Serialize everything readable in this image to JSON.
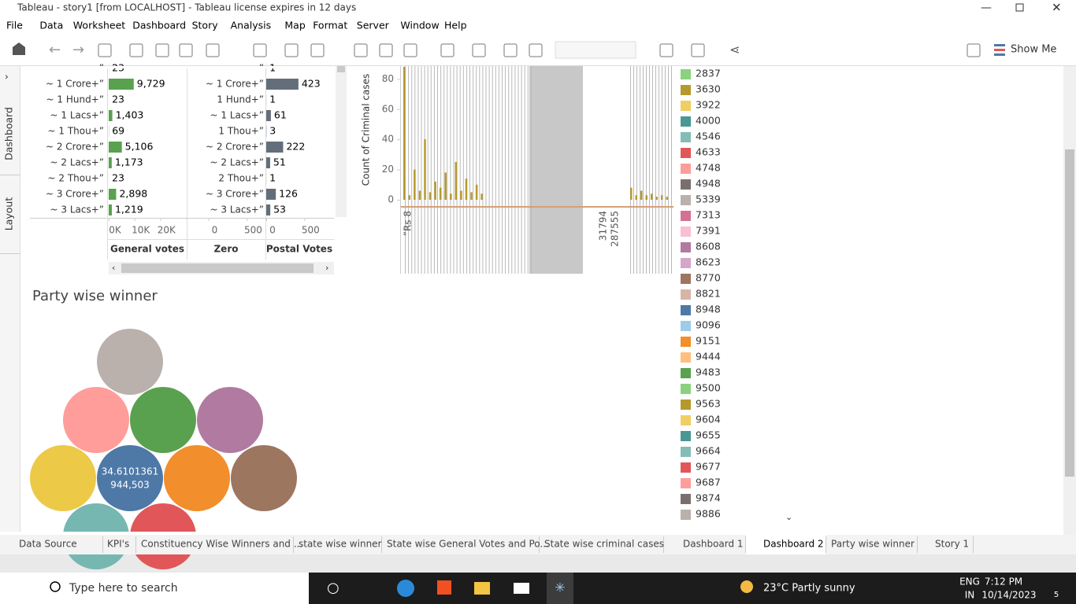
{
  "window": {
    "title": "Tableau - story1 [from LOCALHOST] - Tableau license expires in 12 days"
  },
  "menu": [
    "File",
    "Data",
    "Worksheet",
    "Dashboard",
    "Story",
    "Analysis",
    "Map",
    "Format",
    "Server",
    "Window",
    "Help"
  ],
  "toolbar": {
    "show_me": "Show Me"
  },
  "side_tabs": [
    "Dashboard",
    "Layout"
  ],
  "votes_table": {
    "row_labels": [
      "”",
      "~ 1 Crore+”",
      "~ 1 Hund+”",
      "~ 1 Lacs+”",
      "~ 1 Thou+”",
      "~ 2 Crore+”",
      "~ 2 Lacs+”",
      "~ 2 Thou+”",
      "~ 3 Crore+”",
      "~ 3 Lacs+”"
    ],
    "zero_row_labels": [
      "”",
      "~ 1 Crore+”",
      "1 Hund+”",
      "~ 1 Lacs+”",
      "1 Thou+”",
      "~ 2 Crore+”",
      "~ 2 Lacs+”",
      "2 Thou+”",
      "~ 3 Crore+”",
      "~ 3 Lacs+”"
    ],
    "general_votes": {
      "title": "General votes",
      "color": "#59a14f",
      "values": [
        23,
        9729,
        23,
        1403,
        69,
        5106,
        1173,
        23,
        2898,
        1219
      ],
      "value_labels": [
        "23",
        "9,729",
        "23",
        "1,403",
        "69",
        "5,106",
        "1,173",
        "23",
        "2,898",
        "1,219"
      ],
      "xlim": [
        0,
        30000
      ],
      "xticks": [
        {
          "value": 0,
          "label": "0K"
        },
        {
          "value": 10000,
          "label": "10K"
        },
        {
          "value": 20000,
          "label": "20K"
        }
      ]
    },
    "zero": {
      "title": "Zero",
      "xlim": [
        -250,
        740
      ],
      "xticks": [
        0,
        500
      ]
    },
    "postal_votes": {
      "title": "Postal Votes",
      "color": "#636e7a",
      "values": [
        1,
        423,
        1,
        61,
        3,
        222,
        51,
        1,
        126,
        53
      ],
      "xlim": [
        0,
        880
      ],
      "xticks": [
        0,
        500
      ]
    }
  },
  "criminal_chart": {
    "type": "bar",
    "y_label": "Count of Criminal cases",
    "color": "#b6992d",
    "ylim": [
      0,
      88
    ],
    "yticks": [
      0,
      20,
      40,
      60,
      80
    ],
    "values": [
      88,
      3,
      20,
      6,
      40,
      5,
      12,
      8,
      18,
      4,
      25,
      6,
      14,
      5,
      10,
      4,
      8,
      3,
      6,
      3,
      4,
      2,
      3,
      2
    ],
    "x_labels": [
      "”Rs 8",
      "31794",
      "287555"
    ]
  },
  "legend": {
    "items": [
      {
        "label": "2837",
        "color": "#8cd17d"
      },
      {
        "label": "3630",
        "color": "#b6992d"
      },
      {
        "label": "3922",
        "color": "#f1ce63"
      },
      {
        "label": "4000",
        "color": "#499894"
      },
      {
        "label": "4546",
        "color": "#86bcb6"
      },
      {
        "label": "4633",
        "color": "#e15759"
      },
      {
        "label": "4748",
        "color": "#ff9d9a"
      },
      {
        "label": "4948",
        "color": "#79706e"
      },
      {
        "label": "5339",
        "color": "#bab0ac"
      },
      {
        "label": "7313",
        "color": "#d37295"
      },
      {
        "label": "7391",
        "color": "#fabfd2"
      },
      {
        "label": "8608",
        "color": "#b07aa1"
      },
      {
        "label": "8623",
        "color": "#d4a6c8"
      },
      {
        "label": "8770",
        "color": "#9d7660"
      },
      {
        "label": "8821",
        "color": "#d7b5a6"
      },
      {
        "label": "8948",
        "color": "#4e79a7"
      },
      {
        "label": "9096",
        "color": "#a0cbe8"
      },
      {
        "label": "9151",
        "color": "#f28e2b"
      },
      {
        "label": "9444",
        "color": "#ffbe7d"
      },
      {
        "label": "9483",
        "color": "#59a14f"
      },
      {
        "label": "9500",
        "color": "#8cd17d"
      },
      {
        "label": "9563",
        "color": "#b6992d"
      },
      {
        "label": "9604",
        "color": "#f1ce63"
      },
      {
        "label": "9655",
        "color": "#499894"
      },
      {
        "label": "9664",
        "color": "#86bcb6"
      },
      {
        "label": "9677",
        "color": "#e15759"
      },
      {
        "label": "9687",
        "color": "#ff9d9a"
      },
      {
        "label": "9874",
        "color": "#79706e"
      },
      {
        "label": "9886",
        "color": "#bab0ac"
      }
    ]
  },
  "party_chart": {
    "title": "Party wise winner",
    "bubble_label": [
      "34.6101361",
      "944,503"
    ]
  },
  "sheet_tabs": [
    "Data Source",
    "KPI's",
    "Constituency Wise Winners and ...",
    "state wise winner",
    "State wise General Votes and Po...",
    "State wise criminal cases",
    "Dashboard 1",
    "Dashboard 2",
    "Party wise winner",
    "Story 1"
  ],
  "taskbar": {
    "search": "Type here to search",
    "weather": "23°C  Partly sunny",
    "lang": "ENG",
    "region": "IN",
    "time": "7:12 PM",
    "date": "10/14/2023",
    "notifications": "5"
  }
}
